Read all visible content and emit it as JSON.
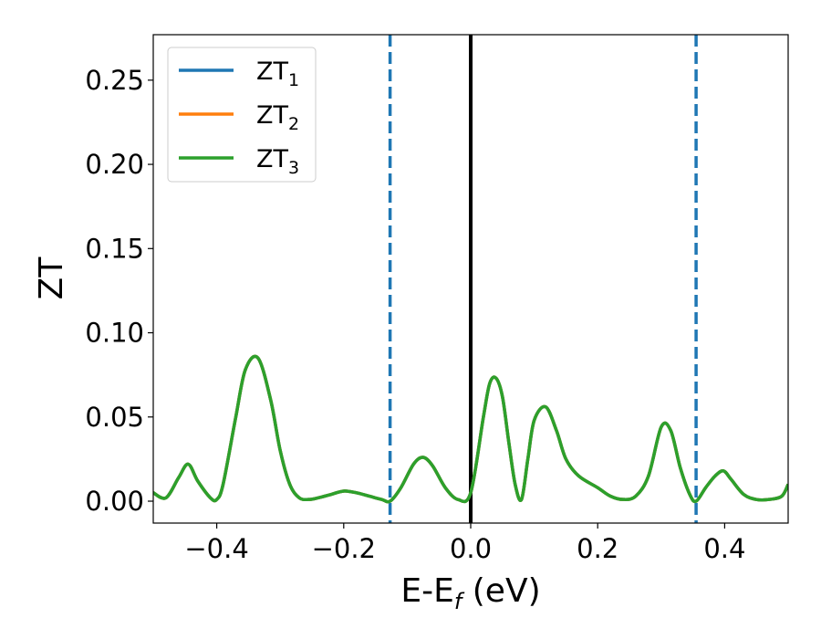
{
  "chart_data": {
    "type": "line",
    "title": "",
    "xlabel": {
      "main": "E-E",
      "sub": "f",
      "unit": " (eV)"
    },
    "ylabel": "ZT",
    "xlim": [
      -0.5,
      0.5
    ],
    "ylim": [
      -0.013,
      0.277
    ],
    "xticks": [
      {
        "value": -0.4,
        "label": "−0.4"
      },
      {
        "value": -0.2,
        "label": "−0.2"
      },
      {
        "value": 0.0,
        "label": "0.0"
      },
      {
        "value": 0.2,
        "label": "0.2"
      },
      {
        "value": 0.4,
        "label": "0.4"
      }
    ],
    "yticks": [
      {
        "value": 0.0,
        "label": "0.00"
      },
      {
        "value": 0.05,
        "label": "0.05"
      },
      {
        "value": 0.1,
        "label": "0.10"
      },
      {
        "value": 0.15,
        "label": "0.15"
      },
      {
        "value": 0.2,
        "label": "0.20"
      },
      {
        "value": 0.25,
        "label": "0.25"
      }
    ],
    "grid": false,
    "legend_position": "top-left",
    "reference_lines": [
      {
        "x": -0.127,
        "style": "dashed",
        "color": "#1f77b4"
      },
      {
        "x": 0.0,
        "style": "solid",
        "color": "#000000"
      },
      {
        "x": 0.355,
        "style": "dashed",
        "color": "#1f77b4"
      }
    ],
    "x": [
      -0.5,
      -0.48,
      -0.46,
      -0.445,
      -0.43,
      -0.41,
      -0.4,
      -0.39,
      -0.37,
      -0.355,
      -0.335,
      -0.315,
      -0.3,
      -0.285,
      -0.27,
      -0.255,
      -0.24,
      -0.22,
      -0.2,
      -0.18,
      -0.16,
      -0.14,
      -0.127,
      -0.11,
      -0.09,
      -0.075,
      -0.06,
      -0.04,
      -0.02,
      0.0,
      0.02,
      0.03,
      0.04,
      0.05,
      0.06,
      0.07,
      0.08,
      0.09,
      0.1,
      0.118,
      0.135,
      0.15,
      0.17,
      0.2,
      0.22,
      0.24,
      0.26,
      0.28,
      0.3,
      0.315,
      0.33,
      0.345,
      0.355,
      0.37,
      0.385,
      0.398,
      0.41,
      0.43,
      0.45,
      0.47,
      0.49,
      0.5
    ],
    "series": [
      {
        "name": "ZT",
        "sub": "1",
        "color": "#1f77b4",
        "values": [
          0.005,
          0.002,
          0.014,
          0.022,
          0.012,
          0.002,
          0.001,
          0.01,
          0.05,
          0.078,
          0.085,
          0.06,
          0.03,
          0.01,
          0.002,
          0.001,
          0.002,
          0.004,
          0.006,
          0.005,
          0.003,
          0.001,
          0.0,
          0.008,
          0.022,
          0.026,
          0.021,
          0.008,
          0.001,
          0.005,
          0.05,
          0.07,
          0.073,
          0.062,
          0.035,
          0.01,
          0.001,
          0.025,
          0.048,
          0.056,
          0.042,
          0.025,
          0.015,
          0.008,
          0.003,
          0.001,
          0.003,
          0.015,
          0.044,
          0.042,
          0.02,
          0.004,
          0.0,
          0.008,
          0.015,
          0.018,
          0.013,
          0.004,
          0.001,
          0.001,
          0.003,
          0.01
        ]
      },
      {
        "name": "ZT",
        "sub": "2",
        "color": "#ff7f0e",
        "values": [
          0.005,
          0.002,
          0.014,
          0.022,
          0.012,
          0.002,
          0.001,
          0.01,
          0.05,
          0.078,
          0.085,
          0.06,
          0.03,
          0.01,
          0.002,
          0.001,
          0.002,
          0.004,
          0.006,
          0.005,
          0.003,
          0.001,
          0.0,
          0.008,
          0.022,
          0.026,
          0.021,
          0.008,
          0.001,
          0.005,
          0.05,
          0.07,
          0.073,
          0.062,
          0.035,
          0.01,
          0.001,
          0.025,
          0.048,
          0.056,
          0.042,
          0.025,
          0.015,
          0.008,
          0.003,
          0.001,
          0.003,
          0.015,
          0.044,
          0.042,
          0.02,
          0.004,
          0.0,
          0.008,
          0.015,
          0.018,
          0.013,
          0.004,
          0.001,
          0.001,
          0.003,
          0.01
        ]
      },
      {
        "name": "ZT",
        "sub": "3",
        "color": "#2ca02c",
        "values": [
          0.005,
          0.002,
          0.014,
          0.022,
          0.012,
          0.002,
          0.001,
          0.01,
          0.05,
          0.078,
          0.085,
          0.06,
          0.03,
          0.01,
          0.002,
          0.001,
          0.002,
          0.004,
          0.006,
          0.005,
          0.003,
          0.001,
          0.0,
          0.008,
          0.022,
          0.026,
          0.021,
          0.008,
          0.001,
          0.005,
          0.05,
          0.07,
          0.073,
          0.062,
          0.035,
          0.01,
          0.001,
          0.025,
          0.048,
          0.056,
          0.042,
          0.025,
          0.015,
          0.008,
          0.003,
          0.001,
          0.003,
          0.015,
          0.044,
          0.042,
          0.02,
          0.004,
          0.0,
          0.008,
          0.015,
          0.018,
          0.013,
          0.004,
          0.001,
          0.001,
          0.003,
          0.01
        ]
      }
    ]
  }
}
